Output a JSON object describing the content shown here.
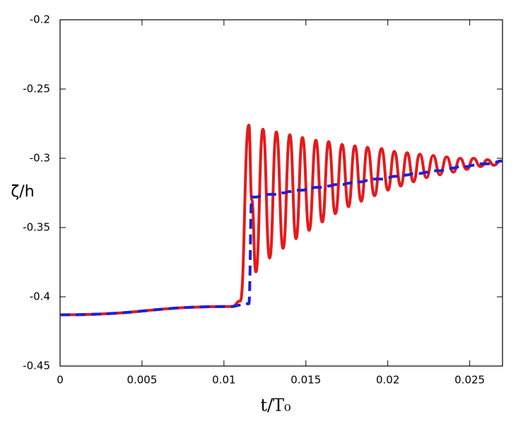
{
  "chart_data": {
    "type": "line",
    "xlabel": "t/T₀",
    "ylabel": "ζ/h",
    "x": [
      0,
      0.0105,
      0.011,
      0.01152,
      0.0117,
      0.01195,
      0.01238,
      0.01279,
      0.0132,
      0.01361,
      0.01402,
      0.0144,
      0.01479,
      0.0152,
      0.01561,
      0.016,
      0.01639,
      0.0168,
      0.01721,
      0.0176,
      0.01799,
      0.01838,
      0.01876,
      0.01919,
      0.01962,
      0.02001,
      0.0204,
      0.02079,
      0.02118,
      0.02157,
      0.02195,
      0.02236,
      0.02277,
      0.02318,
      0.02359,
      0.024,
      0.02441,
      0.02482,
      0.02523,
      0.02566,
      0.02609,
      0.02648,
      0.02687,
      0.027
    ],
    "series": [
      {
        "color": "#e41a1c",
        "line_style": "solid",
        "values": [
          -0.413,
          -0.407,
          -0.403,
          -0.276,
          -0.33,
          -0.382,
          -0.279,
          -0.372,
          -0.281,
          -0.365,
          -0.283,
          -0.358,
          -0.285,
          -0.352,
          -0.287,
          -0.346,
          -0.288,
          -0.34,
          -0.29,
          -0.335,
          -0.291,
          -0.331,
          -0.292,
          -0.327,
          -0.293,
          -0.323,
          -0.295,
          -0.32,
          -0.296,
          -0.317,
          -0.297,
          -0.314,
          -0.298,
          -0.312,
          -0.299,
          -0.31,
          -0.3,
          -0.308,
          -0.3,
          -0.306,
          -0.301,
          -0.305,
          -0.302,
          -0.302
        ]
      },
      {
        "color": "#1f1fd6",
        "line_style": "dashed",
        "values": [
          -0.413,
          -0.407,
          -0.406,
          -0.405,
          -0.328,
          -0.328,
          -0.327,
          -0.326,
          -0.326,
          -0.325,
          -0.324,
          -0.323,
          -0.323,
          -0.322,
          -0.321,
          -0.321,
          -0.32,
          -0.319,
          -0.319,
          -0.318,
          -0.317,
          -0.317,
          -0.316,
          -0.315,
          -0.315,
          -0.314,
          -0.313,
          -0.313,
          -0.312,
          -0.311,
          -0.311,
          -0.31,
          -0.309,
          -0.309,
          -0.308,
          -0.307,
          -0.306,
          -0.306,
          -0.305,
          -0.304,
          -0.304,
          -0.303,
          -0.302,
          -0.302
        ]
      }
    ],
    "xlim": [
      0,
      0.027
    ],
    "xticks": [
      0,
      0.005,
      0.01,
      0.015,
      0.02,
      0.025
    ],
    "ylim": [
      -0.45,
      -0.2
    ],
    "yticks": [
      -0.45,
      -0.4,
      -0.35,
      -0.3,
      -0.25,
      -0.2
    ],
    "grid": false
  }
}
